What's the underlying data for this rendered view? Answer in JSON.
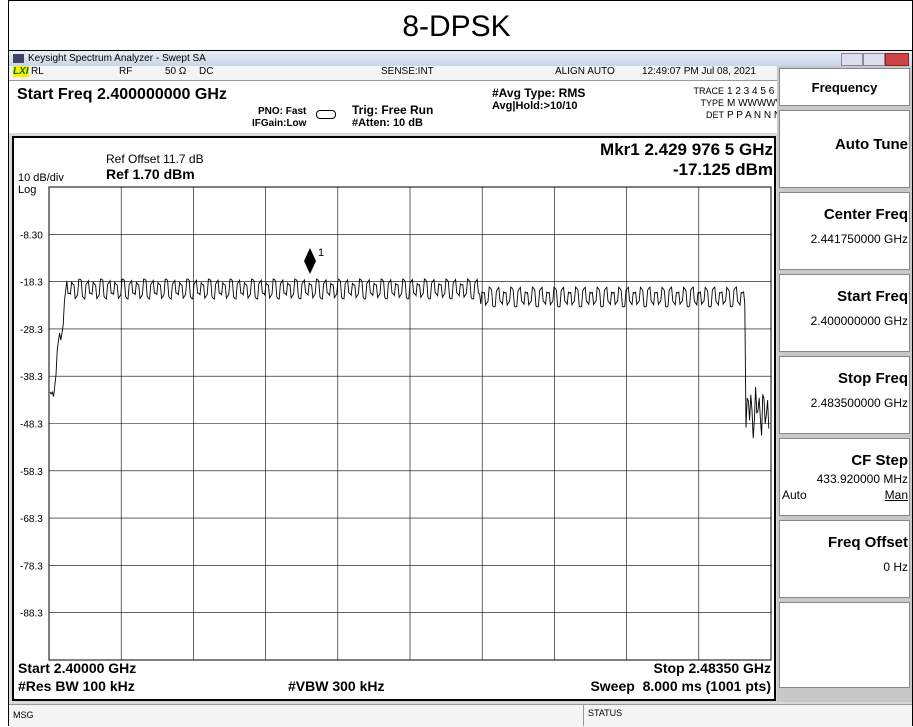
{
  "title": "8-DPSK",
  "window": {
    "title": "Keysight Spectrum Analyzer - Swept SA"
  },
  "status_bar": {
    "lxi": "LXI",
    "rl": "RL",
    "rf": "RF",
    "impedance": "50 Ω",
    "coupling": "DC",
    "sense": "SENSE:INT",
    "align": "ALIGN AUTO",
    "datetime": "12:49:07 PM Jul 08, 2021"
  },
  "settings": {
    "start_freq": "Start Freq 2.400000000 GHz",
    "pno": "PNO: Fast",
    "ifgain": "IFGain:Low",
    "trig": "Trig: Free Run",
    "atten": "#Atten: 10 dB",
    "avg_type": "#Avg Type: RMS",
    "avg_hold": "Avg|Hold:>10/10"
  },
  "trace_info": {
    "trace_label": "TRACE",
    "trace": "1 2 3 4 5 6",
    "type_label": "TYPE",
    "type": "M WWWWW",
    "det_label": "DET",
    "det": "P P A N N N"
  },
  "graph": {
    "ref_offset": "Ref Offset 11.7 dB",
    "scale": "10 dB/div",
    "ref": "Ref 1.70 dBm",
    "log": "Log",
    "marker": "Mkr1 2.429 976 5 GHz",
    "marker_value": "-17.125 dBm",
    "marker_id": "1",
    "yticks": [
      "-8.30",
      "-18.3",
      "-28.3",
      "-38.3",
      "-48.3",
      "-58.3",
      "-68.3",
      "-78.3",
      "-88.3"
    ],
    "start": "Start 2.40000 GHz",
    "stop": "Stop 2.48350 GHz",
    "rbw": "#Res BW 100 kHz",
    "vbw": "#VBW 300 kHz",
    "sweep": "Sweep  8.000 ms (1001 pts)"
  },
  "softkeys": {
    "menu": "Frequency",
    "keys": [
      {
        "label": "Auto Tune"
      },
      {
        "label": "Center Freq",
        "value": "2.441750000 GHz"
      },
      {
        "label": "Start Freq",
        "value": "2.400000000 GHz"
      },
      {
        "label": "Stop Freq",
        "value": "2.483500000 GHz"
      },
      {
        "label": "CF Step",
        "value": "433.920000 MHz",
        "options": [
          "Auto",
          "Man"
        ]
      },
      {
        "label": "Freq Offset",
        "value": "0 Hz"
      }
    ]
  },
  "footer": {
    "msg": "MSG",
    "status": "STATUS"
  }
}
